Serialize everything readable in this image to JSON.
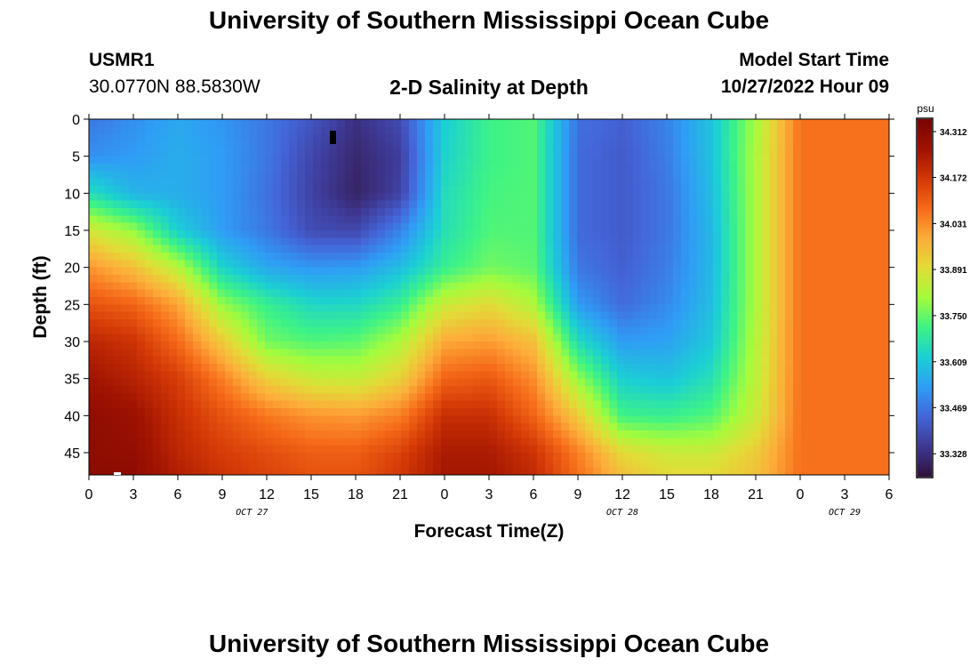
{
  "header": {
    "title": "University of Southern Mississippi Ocean Cube",
    "station_id": "USMR1",
    "station_coords": "30.0770N  88.5830W",
    "plot_title": "2-D Salinity at Depth",
    "start_label": "Model Start Time",
    "start_value": "10/27/2022 Hour 09"
  },
  "footer": {
    "title": "University of Southern Mississippi Ocean Cube"
  },
  "colors": {
    "scale": [
      "#30123b",
      "#3e3893",
      "#4465d8",
      "#2f9df5",
      "#1bcfd4",
      "#3df386",
      "#a4fc3c",
      "#e1dd37",
      "#fdad3a",
      "#f66b19",
      "#d33806",
      "#a01301",
      "#7a0403"
    ]
  },
  "chart_data": {
    "type": "heatmap",
    "xlabel": "Forecast Time(Z)",
    "ylabel": "Depth (ft)",
    "x_tick_labels": [
      "0",
      "3",
      "6",
      "9",
      "12",
      "15",
      "18",
      "21",
      "0",
      "3",
      "6",
      "9",
      "12",
      "15",
      "18",
      "21",
      "0",
      "3",
      "6"
    ],
    "x_range_hours": [
      0,
      54
    ],
    "date_labels": [
      {
        "text": "OCT 27",
        "hour": 11
      },
      {
        "text": "OCT 28",
        "hour": 36
      },
      {
        "text": "OCT 29",
        "hour": 51
      }
    ],
    "y_tick_labels": [
      "0",
      "5",
      "10",
      "15",
      "20",
      "25",
      "30",
      "35",
      "40",
      "45"
    ],
    "y_range_ft": [
      0,
      48
    ],
    "colorbar": {
      "unit": "psu",
      "range": [
        33.258,
        34.35
      ],
      "labels": [
        "34.312",
        "34.172",
        "34.031",
        "33.891",
        "33.750",
        "33.609",
        "33.469",
        "33.328"
      ]
    },
    "salinity_grid": {
      "hours": [
        0,
        3,
        6,
        9,
        12,
        15,
        18,
        21,
        24,
        27,
        30,
        33,
        36,
        39,
        42,
        45,
        48,
        51,
        54
      ],
      "depths_ft": [
        0,
        5,
        10,
        15,
        20,
        25,
        30,
        35,
        40,
        45,
        48
      ],
      "values_psu": [
        [
          33.47,
          33.51,
          33.55,
          33.52,
          33.47,
          33.41,
          33.33,
          33.39,
          33.62,
          33.71,
          33.73,
          33.46,
          33.43,
          33.49,
          33.6,
          33.81,
          34.07,
          34.07,
          34.07
        ],
        [
          33.51,
          33.53,
          33.56,
          33.53,
          33.47,
          33.38,
          33.31,
          33.36,
          33.63,
          33.71,
          33.73,
          33.45,
          33.42,
          33.48,
          33.6,
          33.82,
          34.07,
          34.07,
          34.07
        ],
        [
          33.66,
          33.57,
          33.56,
          33.53,
          33.46,
          33.37,
          33.3,
          33.37,
          33.65,
          33.72,
          33.73,
          33.45,
          33.42,
          33.47,
          33.59,
          33.82,
          34.07,
          34.07,
          34.07
        ],
        [
          33.87,
          33.79,
          33.62,
          33.53,
          33.47,
          33.39,
          33.38,
          33.49,
          33.66,
          33.73,
          33.73,
          33.45,
          33.42,
          33.47,
          33.58,
          33.82,
          34.07,
          34.07,
          34.07
        ],
        [
          34.02,
          33.95,
          33.83,
          33.63,
          33.55,
          33.52,
          33.53,
          33.59,
          33.7,
          33.76,
          33.74,
          33.47,
          33.43,
          33.48,
          33.58,
          33.82,
          34.07,
          34.07,
          34.07
        ],
        [
          34.12,
          34.09,
          34.0,
          33.79,
          33.7,
          33.64,
          33.64,
          33.7,
          33.86,
          33.9,
          33.82,
          33.53,
          33.45,
          33.5,
          33.59,
          33.82,
          34.07,
          34.07,
          34.07
        ],
        [
          34.21,
          34.18,
          34.08,
          33.93,
          33.76,
          33.73,
          33.74,
          33.82,
          33.99,
          34.01,
          33.95,
          33.65,
          33.53,
          33.54,
          33.61,
          33.83,
          34.07,
          34.07,
          34.07
        ],
        [
          34.26,
          34.22,
          34.16,
          34.05,
          33.92,
          33.86,
          33.85,
          33.92,
          34.09,
          34.11,
          34.03,
          33.79,
          33.62,
          33.6,
          33.66,
          33.84,
          34.07,
          34.07,
          34.07
        ],
        [
          34.3,
          34.27,
          34.19,
          34.12,
          34.06,
          34.02,
          34.01,
          34.05,
          34.19,
          34.19,
          34.09,
          33.93,
          33.71,
          33.7,
          33.73,
          33.86,
          34.07,
          34.07,
          34.07
        ],
        [
          34.3,
          34.29,
          34.21,
          34.16,
          34.13,
          34.1,
          34.1,
          34.15,
          34.24,
          34.24,
          34.18,
          34.05,
          33.9,
          33.86,
          33.86,
          33.93,
          34.07,
          34.07,
          34.07
        ],
        [
          34.31,
          34.3,
          34.23,
          34.18,
          34.15,
          34.12,
          34.12,
          34.17,
          34.25,
          34.25,
          34.2,
          34.07,
          33.95,
          33.9,
          33.9,
          33.95,
          34.07,
          34.07,
          34.07
        ]
      ]
    },
    "grid": false,
    "legend": "colorbar right"
  }
}
